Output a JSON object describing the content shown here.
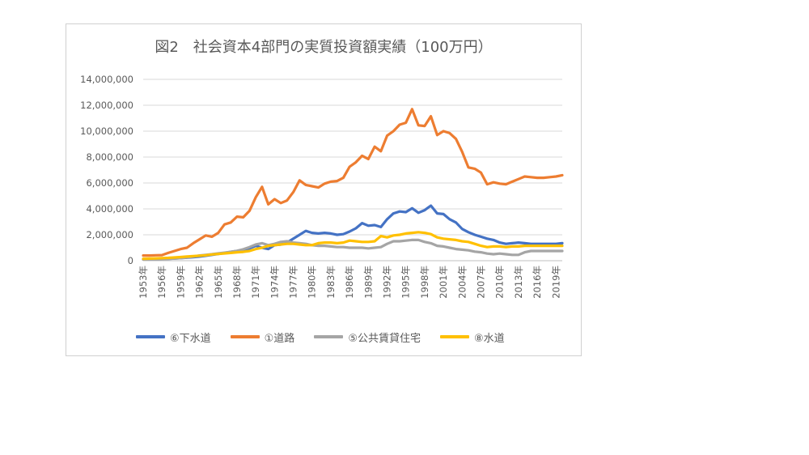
{
  "colors": {
    "sewer": "#4472c4",
    "road": "#ed7d31",
    "housing": "#a5a5a5",
    "water": "#ffc000",
    "grid": "#d9d9d9",
    "axis": "#bfbfbf",
    "text": "#595959"
  },
  "chart_data": {
    "type": "line",
    "title": "図2　社会資本4部門の実質投資額実績（100万円）",
    "xlabel": "",
    "ylabel": "",
    "ylim": [
      0,
      14000000
    ],
    "yticks": [
      0,
      2000000,
      4000000,
      6000000,
      8000000,
      10000000,
      12000000,
      14000000
    ],
    "ytick_labels": [
      "0",
      "2,000,000",
      "4,000,000",
      "6,000,000",
      "8,000,000",
      "10,000,000",
      "12,000,000",
      "14,000,000"
    ],
    "xtick_labels": [
      "1953年",
      "1956年",
      "1959年",
      "1962年",
      "1965年",
      "1968年",
      "1971年",
      "1974年",
      "1977年",
      "1980年",
      "1983年",
      "1986年",
      "1989年",
      "1992年",
      "1995年",
      "1998年",
      "2001年",
      "2004年",
      "2007年",
      "2010年",
      "2013年",
      "2016年",
      "2019年"
    ],
    "x": [
      1953,
      1954,
      1955,
      1956,
      1957,
      1958,
      1959,
      1960,
      1961,
      1962,
      1963,
      1964,
      1965,
      1966,
      1967,
      1968,
      1969,
      1970,
      1971,
      1972,
      1973,
      1974,
      1975,
      1976,
      1977,
      1978,
      1979,
      1980,
      1981,
      1982,
      1983,
      1984,
      1985,
      1986,
      1987,
      1988,
      1989,
      1990,
      1991,
      1992,
      1993,
      1994,
      1995,
      1996,
      1997,
      1998,
      1999,
      2000,
      2001,
      2002,
      2003,
      2004,
      2005,
      2006,
      2007,
      2008,
      2009,
      2010,
      2011,
      2012,
      2013,
      2014,
      2015,
      2016,
      2017,
      2018,
      2019,
      2020
    ],
    "grid": true,
    "legend_position": "bottom",
    "series": [
      {
        "name": "⑥下水道",
        "color_key": "sewer",
        "values": [
          100000,
          110000,
          120000,
          130000,
          150000,
          170000,
          200000,
          230000,
          270000,
          320000,
          380000,
          450000,
          520000,
          600000,
          680000,
          750000,
          850000,
          950000,
          1150000,
          1000000,
          900000,
          1200000,
          1250000,
          1400000,
          1700000,
          2000000,
          2300000,
          2150000,
          2100000,
          2150000,
          2100000,
          2000000,
          2050000,
          2250000,
          2500000,
          2900000,
          2700000,
          2750000,
          2600000,
          3200000,
          3650000,
          3800000,
          3750000,
          4050000,
          3700000,
          3900000,
          4250000,
          3650000,
          3600000,
          3200000,
          2950000,
          2450000,
          2200000,
          2000000,
          1850000,
          1700000,
          1600000,
          1400000,
          1300000,
          1350000,
          1400000,
          1350000,
          1300000,
          1300000,
          1300000,
          1300000,
          1300000,
          1350000
        ]
      },
      {
        "name": "①道路",
        "color_key": "road",
        "values": [
          400000,
          400000,
          420000,
          430000,
          600000,
          750000,
          900000,
          1000000,
          1350000,
          1650000,
          1950000,
          1850000,
          2150000,
          2800000,
          2950000,
          3400000,
          3350000,
          3850000,
          4900000,
          5700000,
          4350000,
          4750000,
          4450000,
          4650000,
          5300000,
          6200000,
          5850000,
          5750000,
          5650000,
          5950000,
          6100000,
          6150000,
          6400000,
          7250000,
          7600000,
          8100000,
          7850000,
          8800000,
          8450000,
          9650000,
          10000000,
          10500000,
          10650000,
          11700000,
          10450000,
          10400000,
          11150000,
          9700000,
          10000000,
          9850000,
          9400000,
          8400000,
          7200000,
          7100000,
          6800000,
          5900000,
          6050000,
          5950000,
          5900000,
          6100000,
          6300000,
          6500000,
          6450000,
          6400000,
          6400000,
          6450000,
          6500000,
          6600000
        ]
      },
      {
        "name": "⑤公共賃貸住宅",
        "color_key": "housing",
        "values": [
          100000,
          100000,
          100000,
          120000,
          140000,
          170000,
          200000,
          250000,
          320000,
          400000,
          450000,
          500000,
          560000,
          620000,
          680000,
          760000,
          880000,
          1050000,
          1250000,
          1350000,
          1200000,
          1300000,
          1450000,
          1500000,
          1400000,
          1350000,
          1300000,
          1200000,
          1150000,
          1150000,
          1100000,
          1050000,
          1050000,
          1000000,
          1000000,
          1000000,
          950000,
          1000000,
          1050000,
          1300000,
          1500000,
          1500000,
          1550000,
          1600000,
          1600000,
          1450000,
          1350000,
          1150000,
          1100000,
          1000000,
          900000,
          850000,
          800000,
          700000,
          650000,
          550000,
          500000,
          550000,
          500000,
          450000,
          450000,
          650000,
          750000,
          750000,
          750000,
          750000,
          750000,
          750000
        ]
      },
      {
        "name": "⑧水道",
        "color_key": "water",
        "values": [
          150000,
          160000,
          180000,
          200000,
          220000,
          250000,
          280000,
          320000,
          350000,
          380000,
          420000,
          480000,
          520000,
          560000,
          600000,
          650000,
          680000,
          750000,
          900000,
          1000000,
          1150000,
          1200000,
          1250000,
          1300000,
          1300000,
          1250000,
          1200000,
          1200000,
          1350000,
          1400000,
          1400000,
          1350000,
          1400000,
          1550000,
          1500000,
          1450000,
          1450000,
          1500000,
          1900000,
          1800000,
          1950000,
          2000000,
          2100000,
          2150000,
          2200000,
          2150000,
          2050000,
          1800000,
          1700000,
          1650000,
          1600000,
          1500000,
          1450000,
          1300000,
          1150000,
          1050000,
          1100000,
          1100000,
          1050000,
          1100000,
          1100000,
          1150000,
          1150000,
          1150000,
          1150000,
          1150000,
          1150000,
          1150000
        ]
      }
    ]
  }
}
